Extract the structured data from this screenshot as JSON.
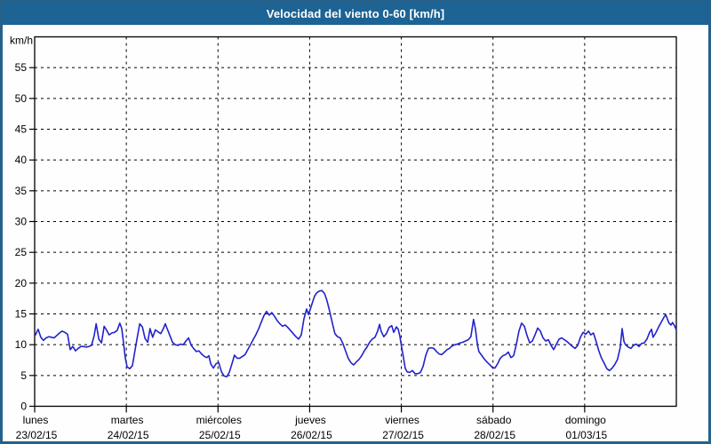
{
  "window": {
    "title": "Velocidad del viento 0-60 [km/h]"
  },
  "colors": {
    "frame_border": "#26618c",
    "title_bar_bg": "#1d6394",
    "title_text": "#ffffff",
    "plot_bg": "#fefefe",
    "grid": "#000000",
    "axis": "#000000",
    "series_line": "#2222cd"
  },
  "chart_data": {
    "type": "line",
    "title": "Velocidad del viento 0-60 [km/h]",
    "legend": "none",
    "grid": "dashed",
    "y_axis": {
      "label": "km/h",
      "min": 0,
      "max": 60,
      "tick_step": 5,
      "tick_labels": [
        "0",
        "5",
        "10",
        "15",
        "20",
        "25",
        "30",
        "35",
        "40",
        "45",
        "50",
        "55"
      ]
    },
    "x_axis": {
      "unit": "hours since lunes 00:00",
      "min": 0,
      "max": 168,
      "day_tick_step_hours": 24,
      "day_labels": [
        {
          "name": "lunes",
          "date": "23/02/15"
        },
        {
          "name": "martes",
          "date": "24/02/15"
        },
        {
          "name": "miércoles",
          "date": "25/02/15"
        },
        {
          "name": "jueves",
          "date": "26/02/15"
        },
        {
          "name": "viernes",
          "date": "27/02/15"
        },
        {
          "name": "sábado",
          "date": "28/02/15"
        },
        {
          "name": "domingo",
          "date": "01/03/15"
        }
      ]
    },
    "series": [
      {
        "name": "Velocidad del viento",
        "points": [
          [
            0.2,
            11.6
          ],
          [
            0.9,
            12.5
          ],
          [
            1.6,
            11.2
          ],
          [
            2.3,
            10.7
          ],
          [
            3.0,
            11.1
          ],
          [
            3.7,
            11.3
          ],
          [
            4.4,
            11.2
          ],
          [
            5.1,
            11.1
          ],
          [
            5.8,
            11.5
          ],
          [
            6.5,
            11.9
          ],
          [
            7.2,
            12.2
          ],
          [
            7.9,
            12.0
          ],
          [
            8.6,
            11.7
          ],
          [
            9.3,
            9.2
          ],
          [
            10.0,
            9.7
          ],
          [
            10.7,
            9.0
          ],
          [
            11.4,
            9.4
          ],
          [
            12.1,
            9.7
          ],
          [
            12.8,
            9.7
          ],
          [
            13.5,
            9.6
          ],
          [
            14.2,
            9.7
          ],
          [
            14.9,
            9.9
          ],
          [
            15.6,
            11.5
          ],
          [
            16.1,
            13.4
          ],
          [
            16.8,
            10.9
          ],
          [
            17.5,
            10.3
          ],
          [
            18.2,
            13.0
          ],
          [
            18.8,
            12.4
          ],
          [
            19.5,
            11.6
          ],
          [
            20.2,
            11.9
          ],
          [
            20.9,
            12.0
          ],
          [
            21.6,
            12.3
          ],
          [
            22.3,
            13.5
          ],
          [
            22.8,
            12.6
          ],
          [
            23.3,
            10.2
          ],
          [
            23.7,
            7.9
          ],
          [
            24.2,
            6.4
          ],
          [
            24.9,
            6.1
          ],
          [
            25.6,
            6.6
          ],
          [
            26.1,
            8.5
          ],
          [
            26.8,
            11.0
          ],
          [
            27.5,
            13.4
          ],
          [
            28.2,
            12.9
          ],
          [
            28.9,
            11.0
          ],
          [
            29.6,
            10.4
          ],
          [
            30.2,
            12.6
          ],
          [
            30.9,
            11.2
          ],
          [
            31.6,
            12.4
          ],
          [
            32.3,
            12.1
          ],
          [
            33.0,
            11.8
          ],
          [
            33.7,
            12.6
          ],
          [
            34.2,
            13.4
          ],
          [
            34.7,
            12.6
          ],
          [
            35.4,
            11.5
          ],
          [
            36.1,
            10.4
          ],
          [
            36.8,
            10.0
          ],
          [
            37.5,
            9.9
          ],
          [
            38.2,
            10.1
          ],
          [
            38.9,
            10.0
          ],
          [
            39.6,
            10.6
          ],
          [
            40.3,
            11.1
          ],
          [
            41.0,
            9.9
          ],
          [
            41.6,
            9.4
          ],
          [
            42.3,
            8.9
          ],
          [
            43.0,
            9.0
          ],
          [
            43.7,
            8.5
          ],
          [
            44.4,
            8.1
          ],
          [
            45.1,
            7.9
          ],
          [
            45.6,
            8.2
          ],
          [
            46.1,
            6.9
          ],
          [
            46.8,
            6.2
          ],
          [
            47.5,
            6.9
          ],
          [
            48.2,
            7.1
          ],
          [
            48.9,
            5.6
          ],
          [
            49.6,
            4.9
          ],
          [
            50.3,
            4.8
          ],
          [
            51.0,
            5.6
          ],
          [
            51.7,
            7.0
          ],
          [
            52.3,
            8.3
          ],
          [
            53.0,
            7.8
          ],
          [
            53.7,
            7.8
          ],
          [
            54.4,
            8.1
          ],
          [
            55.1,
            8.4
          ],
          [
            55.8,
            9.2
          ],
          [
            56.5,
            10.0
          ],
          [
            57.2,
            10.8
          ],
          [
            57.9,
            11.6
          ],
          [
            58.6,
            12.5
          ],
          [
            59.3,
            13.6
          ],
          [
            60.0,
            14.7
          ],
          [
            60.7,
            15.4
          ],
          [
            61.4,
            14.8
          ],
          [
            62.1,
            15.2
          ],
          [
            62.8,
            14.6
          ],
          [
            63.5,
            13.9
          ],
          [
            64.2,
            13.4
          ],
          [
            64.9,
            13.0
          ],
          [
            65.6,
            13.2
          ],
          [
            66.3,
            12.8
          ],
          [
            67.0,
            12.3
          ],
          [
            67.7,
            11.8
          ],
          [
            68.4,
            11.3
          ],
          [
            69.1,
            10.9
          ],
          [
            69.8,
            11.6
          ],
          [
            70.5,
            14.2
          ],
          [
            71.2,
            15.8
          ],
          [
            71.7,
            14.9
          ],
          [
            72.4,
            16.2
          ],
          [
            72.8,
            17.0
          ],
          [
            73.3,
            17.9
          ],
          [
            73.8,
            18.4
          ],
          [
            74.5,
            18.7
          ],
          [
            75.2,
            18.8
          ],
          [
            75.9,
            18.3
          ],
          [
            76.5,
            17.2
          ],
          [
            77.2,
            15.5
          ],
          [
            77.9,
            13.6
          ],
          [
            78.6,
            11.8
          ],
          [
            79.3,
            11.3
          ],
          [
            80.0,
            11.1
          ],
          [
            80.7,
            10.2
          ],
          [
            81.4,
            9.0
          ],
          [
            82.1,
            7.8
          ],
          [
            82.8,
            7.1
          ],
          [
            83.5,
            6.7
          ],
          [
            84.2,
            7.2
          ],
          [
            84.9,
            7.6
          ],
          [
            85.6,
            8.2
          ],
          [
            86.3,
            9.0
          ],
          [
            87.0,
            9.6
          ],
          [
            87.7,
            10.4
          ],
          [
            88.4,
            10.9
          ],
          [
            89.1,
            11.2
          ],
          [
            89.8,
            12.2
          ],
          [
            90.3,
            13.3
          ],
          [
            90.7,
            12.2
          ],
          [
            91.4,
            11.3
          ],
          [
            92.1,
            11.8
          ],
          [
            92.8,
            12.8
          ],
          [
            93.5,
            13.1
          ],
          [
            94.0,
            12.0
          ],
          [
            94.7,
            12.9
          ],
          [
            95.2,
            12.5
          ],
          [
            95.6,
            11.4
          ],
          [
            96.1,
            9.5
          ],
          [
            96.6,
            7.8
          ],
          [
            97.0,
            6.2
          ],
          [
            97.5,
            5.6
          ],
          [
            98.2,
            5.5
          ],
          [
            98.9,
            5.8
          ],
          [
            99.6,
            5.3
          ],
          [
            100.3,
            5.3
          ],
          [
            101.0,
            5.5
          ],
          [
            101.7,
            6.5
          ],
          [
            102.4,
            8.3
          ],
          [
            103.1,
            9.4
          ],
          [
            103.8,
            9.5
          ],
          [
            104.5,
            9.4
          ],
          [
            105.2,
            8.9
          ],
          [
            105.9,
            8.5
          ],
          [
            106.6,
            8.4
          ],
          [
            107.3,
            8.8
          ],
          [
            108.0,
            9.2
          ],
          [
            108.6,
            9.4
          ],
          [
            109.3,
            9.8
          ],
          [
            110.0,
            10.0
          ],
          [
            110.7,
            10.1
          ],
          [
            111.4,
            10.3
          ],
          [
            112.1,
            10.4
          ],
          [
            112.8,
            10.6
          ],
          [
            113.5,
            10.8
          ],
          [
            114.2,
            11.3
          ],
          [
            114.9,
            14.1
          ],
          [
            115.4,
            12.6
          ],
          [
            115.9,
            10.1
          ],
          [
            116.3,
            8.9
          ],
          [
            117.0,
            8.3
          ],
          [
            117.7,
            7.7
          ],
          [
            118.4,
            7.2
          ],
          [
            119.1,
            6.8
          ],
          [
            119.8,
            6.3
          ],
          [
            120.5,
            6.2
          ],
          [
            121.2,
            6.9
          ],
          [
            121.9,
            7.8
          ],
          [
            122.6,
            8.2
          ],
          [
            123.3,
            8.4
          ],
          [
            124.0,
            8.8
          ],
          [
            124.7,
            7.9
          ],
          [
            125.4,
            8.2
          ],
          [
            126.1,
            10.0
          ],
          [
            126.8,
            12.2
          ],
          [
            127.5,
            13.5
          ],
          [
            128.2,
            13.0
          ],
          [
            128.9,
            11.5
          ],
          [
            129.6,
            10.3
          ],
          [
            130.3,
            10.6
          ],
          [
            131.0,
            11.6
          ],
          [
            131.7,
            12.7
          ],
          [
            132.4,
            12.2
          ],
          [
            133.1,
            11.1
          ],
          [
            133.8,
            10.6
          ],
          [
            134.5,
            10.8
          ],
          [
            135.2,
            9.9
          ],
          [
            135.9,
            9.2
          ],
          [
            136.6,
            10.1
          ],
          [
            137.3,
            10.9
          ],
          [
            138.0,
            11.1
          ],
          [
            138.7,
            10.8
          ],
          [
            139.4,
            10.5
          ],
          [
            140.1,
            10.1
          ],
          [
            140.8,
            9.7
          ],
          [
            141.5,
            9.4
          ],
          [
            142.2,
            9.9
          ],
          [
            142.9,
            11.2
          ],
          [
            143.6,
            12.0
          ],
          [
            144.3,
            11.7
          ],
          [
            145.0,
            12.2
          ],
          [
            145.6,
            11.6
          ],
          [
            146.3,
            11.9
          ],
          [
            147.0,
            10.5
          ],
          [
            147.7,
            9.0
          ],
          [
            148.4,
            7.8
          ],
          [
            149.1,
            7.0
          ],
          [
            149.8,
            6.1
          ],
          [
            150.5,
            5.8
          ],
          [
            151.2,
            6.2
          ],
          [
            151.9,
            6.8
          ],
          [
            152.6,
            7.6
          ],
          [
            153.3,
            9.5
          ],
          [
            153.8,
            12.6
          ],
          [
            154.3,
            10.5
          ],
          [
            154.7,
            10.0
          ],
          [
            155.4,
            9.6
          ],
          [
            156.1,
            9.4
          ],
          [
            156.8,
            9.9
          ],
          [
            157.5,
            10.1
          ],
          [
            158.2,
            9.7
          ],
          [
            158.9,
            10.2
          ],
          [
            159.6,
            10.3
          ],
          [
            160.3,
            10.9
          ],
          [
            161.0,
            12.0
          ],
          [
            161.5,
            12.5
          ],
          [
            161.9,
            11.2
          ],
          [
            162.6,
            11.9
          ],
          [
            163.3,
            12.8
          ],
          [
            164.0,
            13.6
          ],
          [
            164.7,
            14.4
          ],
          [
            165.2,
            14.9
          ],
          [
            165.7,
            14.1
          ],
          [
            166.1,
            13.5
          ],
          [
            166.6,
            13.2
          ],
          [
            167.0,
            13.6
          ],
          [
            167.5,
            13.1
          ],
          [
            168.0,
            12.4
          ]
        ]
      }
    ]
  }
}
